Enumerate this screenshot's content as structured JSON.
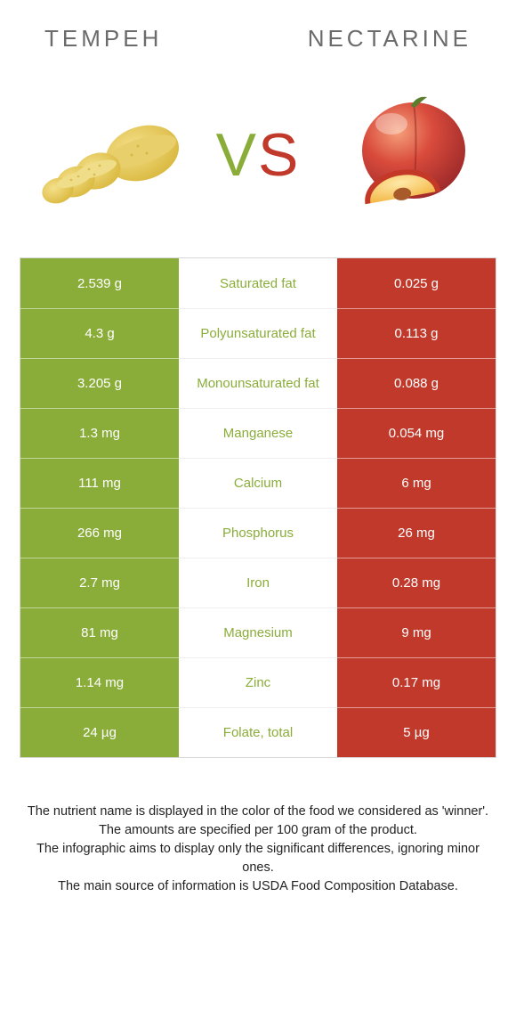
{
  "header": {
    "left_title": "TEMPEH",
    "right_title": "NECTARINE"
  },
  "vs": {
    "v": "V",
    "s": "S"
  },
  "colors": {
    "left_bg": "#8aad3a",
    "right_bg": "#c1392b",
    "mid_text_winner_left": "#8aad3a",
    "mid_text_winner_right": "#c1392b"
  },
  "rows": [
    {
      "left": "2.539 g",
      "label": "Saturated fat",
      "right": "0.025 g",
      "winner": "left"
    },
    {
      "left": "4.3 g",
      "label": "Polyunsaturated fat",
      "right": "0.113 g",
      "winner": "left"
    },
    {
      "left": "3.205 g",
      "label": "Monounsaturated fat",
      "right": "0.088 g",
      "winner": "left"
    },
    {
      "left": "1.3 mg",
      "label": "Manganese",
      "right": "0.054 mg",
      "winner": "left"
    },
    {
      "left": "111 mg",
      "label": "Calcium",
      "right": "6 mg",
      "winner": "left"
    },
    {
      "left": "266 mg",
      "label": "Phosphorus",
      "right": "26 mg",
      "winner": "left"
    },
    {
      "left": "2.7 mg",
      "label": "Iron",
      "right": "0.28 mg",
      "winner": "left"
    },
    {
      "left": "81 mg",
      "label": "Magnesium",
      "right": "9 mg",
      "winner": "left"
    },
    {
      "left": "1.14 mg",
      "label": "Zinc",
      "right": "0.17 mg",
      "winner": "left"
    },
    {
      "left": "24 µg",
      "label": "Folate, total",
      "right": "5 µg",
      "winner": "left"
    }
  ],
  "footer": {
    "line1": "The nutrient name is displayed in the color of the food we considered as 'winner'.",
    "line2": "The amounts are specified per 100 gram of the product.",
    "line3": "The infographic aims to display only the significant differences, ignoring minor ones.",
    "line4": "The main source of information is USDA Food Composition Database."
  }
}
